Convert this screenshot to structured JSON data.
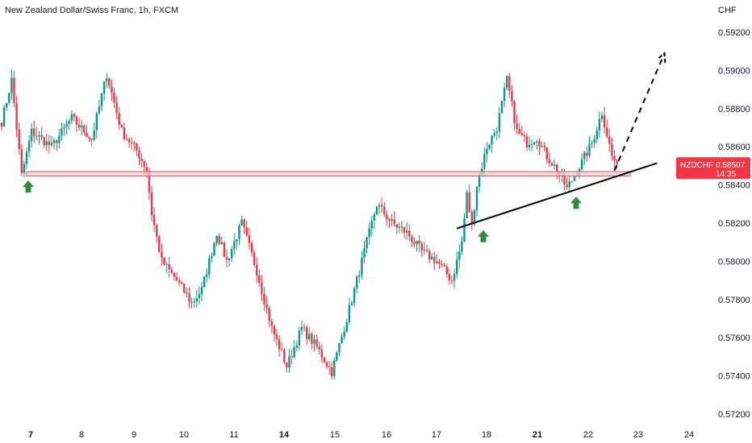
{
  "chart_data": {
    "type": "candlestick",
    "title": "New Zealand Dollar/Swiss Franc, 1h, FXCM",
    "currency_label": "CHF",
    "ylim": [
      0.571,
      0.5935
    ],
    "y_ticks": [
      "0.59200",
      "0.59000",
      "0.58800",
      "0.58600",
      "0.58400",
      "0.58200",
      "0.58000",
      "0.57800",
      "0.57600",
      "0.57400",
      "0.57200"
    ],
    "x_ticks": [
      {
        "label": "7",
        "bold": true
      },
      {
        "label": "8",
        "bold": false
      },
      {
        "label": "9",
        "bold": false
      },
      {
        "label": "10",
        "bold": false
      },
      {
        "label": "11",
        "bold": false
      },
      {
        "label": "14",
        "bold": true
      },
      {
        "label": "15",
        "bold": false
      },
      {
        "label": "16",
        "bold": false
      },
      {
        "label": "17",
        "bold": false
      },
      {
        "label": "18",
        "bold": false
      },
      {
        "label": "21",
        "bold": true
      },
      {
        "label": "22",
        "bold": false
      },
      {
        "label": "23",
        "bold": false
      },
      {
        "label": "24",
        "bold": false
      }
    ],
    "price_path": [
      [
        0,
        0.5873
      ],
      [
        4,
        0.5895
      ],
      [
        8,
        0.5845
      ],
      [
        12,
        0.5868
      ],
      [
        20,
        0.586
      ],
      [
        28,
        0.5875
      ],
      [
        36,
        0.5864
      ],
      [
        42,
        0.5898
      ],
      [
        48,
        0.5868
      ],
      [
        54,
        0.5858
      ],
      [
        58,
        0.5848
      ],
      [
        60,
        0.5825
      ],
      [
        64,
        0.58
      ],
      [
        70,
        0.579
      ],
      [
        76,
        0.5778
      ],
      [
        80,
        0.5785
      ],
      [
        86,
        0.5815
      ],
      [
        90,
        0.58
      ],
      [
        96,
        0.582
      ],
      [
        102,
        0.5795
      ],
      [
        108,
        0.5765
      ],
      [
        114,
        0.5745
      ],
      [
        120,
        0.5765
      ],
      [
        126,
        0.5755
      ],
      [
        132,
        0.5742
      ],
      [
        138,
        0.577
      ],
      [
        144,
        0.58
      ],
      [
        150,
        0.583
      ],
      [
        156,
        0.582
      ],
      [
        162,
        0.5815
      ],
      [
        168,
        0.5805
      ],
      [
        174,
        0.58
      ],
      [
        180,
        0.579
      ],
      [
        184,
        0.581
      ],
      [
        186,
        0.5835
      ],
      [
        188,
        0.5818
      ],
      [
        190,
        0.584
      ],
      [
        194,
        0.586
      ],
      [
        198,
        0.587
      ],
      [
        202,
        0.5895
      ],
      [
        206,
        0.5868
      ],
      [
        210,
        0.5862
      ],
      [
        214,
        0.5865
      ],
      [
        218,
        0.5855
      ],
      [
        222,
        0.5848
      ],
      [
        226,
        0.5838
      ],
      [
        232,
        0.5852
      ],
      [
        236,
        0.5862
      ],
      [
        240,
        0.5878
      ],
      [
        244,
        0.5855
      ],
      [
        246,
        0.58507
      ]
    ],
    "support_zone": {
      "low": 0.58447,
      "high": 0.5847
    },
    "trendline": {
      "start": [
        182,
        0.58172
      ],
      "end": [
        262,
        0.58514
      ]
    },
    "projection": {
      "start": [
        245,
        0.58475
      ],
      "end": [
        265,
        0.5909
      ]
    },
    "arrow_markers": [
      {
        "name": "low-1",
        "value": 0.5844
      },
      {
        "name": "low-2",
        "value": 0.5818
      },
      {
        "name": "low-3",
        "value": 0.58355
      }
    ],
    "last_price": {
      "symbol": "NZDCHF",
      "price": "0.58507",
      "countdown": "14:35"
    },
    "colors": {
      "up": "#089981",
      "down": "#f23645",
      "zone_fill": "#f7c6ca",
      "zone_stroke": "#e05a66",
      "trendline": "#000000",
      "arrow": "#2e8b3d",
      "badge": "#f23645"
    }
  }
}
